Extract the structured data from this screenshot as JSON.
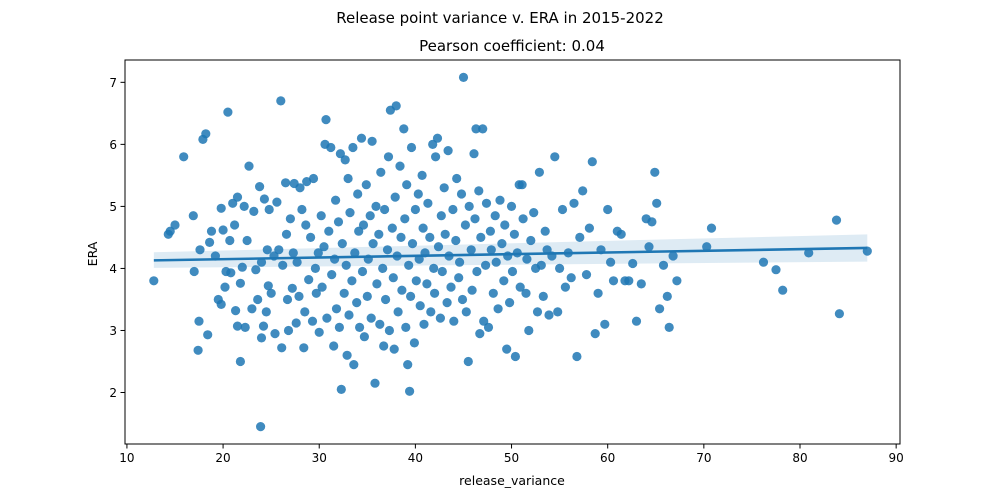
{
  "chart_data": {
    "type": "scatter",
    "title": "Release point variance v. ERA in 2015-2022",
    "subtitle": "Pearson coefficient: 0.04",
    "xlabel": "release_variance",
    "ylabel": "ERA",
    "xlim": [
      9.8,
      90.4
    ],
    "ylim": [
      1.17,
      7.36
    ],
    "xticks": [
      10,
      20,
      30,
      40,
      50,
      60,
      70,
      80,
      90
    ],
    "yticks": [
      2,
      3,
      4,
      5,
      6,
      7
    ],
    "grid": false,
    "legend": "none",
    "colors": {
      "points": "#1f77b4",
      "band": "#1f77b4"
    },
    "regression": {
      "x": [
        12.8,
        87.0
      ],
      "y": [
        4.13,
        4.33
      ],
      "ci_lower": [
        4.01,
        4.11
      ],
      "ci_upper": [
        4.26,
        4.55
      ]
    },
    "points": [
      [
        12.8,
        3.8
      ],
      [
        14.3,
        4.55
      ],
      [
        14.5,
        4.6
      ],
      [
        15.0,
        4.7
      ],
      [
        15.9,
        5.8
      ],
      [
        16.9,
        4.85
      ],
      [
        17.0,
        3.95
      ],
      [
        17.4,
        2.68
      ],
      [
        17.5,
        3.15
      ],
      [
        17.6,
        4.3
      ],
      [
        17.9,
        6.08
      ],
      [
        18.2,
        6.17
      ],
      [
        18.4,
        2.93
      ],
      [
        18.6,
        4.42
      ],
      [
        18.8,
        4.6
      ],
      [
        19.2,
        4.2
      ],
      [
        19.5,
        3.5
      ],
      [
        19.8,
        3.42
      ],
      [
        19.8,
        4.97
      ],
      [
        20.0,
        4.62
      ],
      [
        20.2,
        3.7
      ],
      [
        20.3,
        3.95
      ],
      [
        20.5,
        6.52
      ],
      [
        20.7,
        4.45
      ],
      [
        20.8,
        3.93
      ],
      [
        21.0,
        5.05
      ],
      [
        21.2,
        4.7
      ],
      [
        21.3,
        3.32
      ],
      [
        21.5,
        5.15
      ],
      [
        21.5,
        3.07
      ],
      [
        21.8,
        2.5
      ],
      [
        21.8,
        3.76
      ],
      [
        22.0,
        4.02
      ],
      [
        22.2,
        5.0
      ],
      [
        22.3,
        3.05
      ],
      [
        22.5,
        4.45
      ],
      [
        22.7,
        5.65
      ],
      [
        23.0,
        3.35
      ],
      [
        23.2,
        4.92
      ],
      [
        23.4,
        3.98
      ],
      [
        23.6,
        3.5
      ],
      [
        23.8,
        5.32
      ],
      [
        23.9,
        1.45
      ],
      [
        24.0,
        4.1
      ],
      [
        24.0,
        2.88
      ],
      [
        24.2,
        3.07
      ],
      [
        24.3,
        5.12
      ],
      [
        24.5,
        3.3
      ],
      [
        24.6,
        4.3
      ],
      [
        24.7,
        3.72
      ],
      [
        24.8,
        4.95
      ],
      [
        25.0,
        3.6
      ],
      [
        25.3,
        4.2
      ],
      [
        25.4,
        2.95
      ],
      [
        25.6,
        5.07
      ],
      [
        25.8,
        4.3
      ],
      [
        26.0,
        6.7
      ],
      [
        26.1,
        2.72
      ],
      [
        26.2,
        4.05
      ],
      [
        26.5,
        5.38
      ],
      [
        26.6,
        4.55
      ],
      [
        26.7,
        3.5
      ],
      [
        26.8,
        3.0
      ],
      [
        27.0,
        4.8
      ],
      [
        27.2,
        3.68
      ],
      [
        27.3,
        4.25
      ],
      [
        27.4,
        5.37
      ],
      [
        27.6,
        3.12
      ],
      [
        27.7,
        4.1
      ],
      [
        27.9,
        3.55
      ],
      [
        28.0,
        5.3
      ],
      [
        28.2,
        4.95
      ],
      [
        28.4,
        2.72
      ],
      [
        28.5,
        3.3
      ],
      [
        28.6,
        4.7
      ],
      [
        28.7,
        5.4
      ],
      [
        28.9,
        3.82
      ],
      [
        29.1,
        4.5
      ],
      [
        29.3,
        3.15
      ],
      [
        29.4,
        5.45
      ],
      [
        29.6,
        4.0
      ],
      [
        29.7,
        3.6
      ],
      [
        29.9,
        4.25
      ],
      [
        30.0,
        2.97
      ],
      [
        30.2,
        4.85
      ],
      [
        30.3,
        3.7
      ],
      [
        30.5,
        4.35
      ],
      [
        30.6,
        6.0
      ],
      [
        30.7,
        6.4
      ],
      [
        30.8,
        3.2
      ],
      [
        31.0,
        4.6
      ],
      [
        31.2,
        5.95
      ],
      [
        31.3,
        3.9
      ],
      [
        31.5,
        2.75
      ],
      [
        31.6,
        4.15
      ],
      [
        31.7,
        5.1
      ],
      [
        31.8,
        3.35
      ],
      [
        32.0,
        4.75
      ],
      [
        32.1,
        3.05
      ],
      [
        32.2,
        5.85
      ],
      [
        32.3,
        2.05
      ],
      [
        32.4,
        4.4
      ],
      [
        32.6,
        3.6
      ],
      [
        32.7,
        5.75
      ],
      [
        32.8,
        4.05
      ],
      [
        32.9,
        2.6
      ],
      [
        33.0,
        5.45
      ],
      [
        33.1,
        3.25
      ],
      [
        33.2,
        4.9
      ],
      [
        33.4,
        3.8
      ],
      [
        33.5,
        5.95
      ],
      [
        33.6,
        2.45
      ],
      [
        33.7,
        4.25
      ],
      [
        33.9,
        3.45
      ],
      [
        34.0,
        5.2
      ],
      [
        34.1,
        4.6
      ],
      [
        34.2,
        3.05
      ],
      [
        34.4,
        6.1
      ],
      [
        34.5,
        3.95
      ],
      [
        34.6,
        4.7
      ],
      [
        34.7,
        2.9
      ],
      [
        34.9,
        5.35
      ],
      [
        35.0,
        3.55
      ],
      [
        35.1,
        4.15
      ],
      [
        35.3,
        4.85
      ],
      [
        35.4,
        3.2
      ],
      [
        35.5,
        6.05
      ],
      [
        35.6,
        4.4
      ],
      [
        35.8,
        2.15
      ],
      [
        35.9,
        5.0
      ],
      [
        36.0,
        3.75
      ],
      [
        36.2,
        4.55
      ],
      [
        36.3,
        3.1
      ],
      [
        36.4,
        5.55
      ],
      [
        36.6,
        4.0
      ],
      [
        36.7,
        2.75
      ],
      [
        36.8,
        4.95
      ],
      [
        36.9,
        3.5
      ],
      [
        37.1,
        4.3
      ],
      [
        37.2,
        5.8
      ],
      [
        37.3,
        3.0
      ],
      [
        37.4,
        6.55
      ],
      [
        37.6,
        4.65
      ],
      [
        37.7,
        3.85
      ],
      [
        37.8,
        2.7
      ],
      [
        37.9,
        5.15
      ],
      [
        38.0,
        6.62
      ],
      [
        38.1,
        4.2
      ],
      [
        38.2,
        3.3
      ],
      [
        38.4,
        5.65
      ],
      [
        38.5,
        4.5
      ],
      [
        38.6,
        3.65
      ],
      [
        38.8,
        6.25
      ],
      [
        38.9,
        4.8
      ],
      [
        39.0,
        3.05
      ],
      [
        39.1,
        5.35
      ],
      [
        39.2,
        2.45
      ],
      [
        39.3,
        4.05
      ],
      [
        39.4,
        2.02
      ],
      [
        39.5,
        3.55
      ],
      [
        39.6,
        5.95
      ],
      [
        39.7,
        4.4
      ],
      [
        39.9,
        2.8
      ],
      [
        40.0,
        4.95
      ],
      [
        40.1,
        3.8
      ],
      [
        40.3,
        5.2
      ],
      [
        40.4,
        4.15
      ],
      [
        40.5,
        3.4
      ],
      [
        40.7,
        5.5
      ],
      [
        40.8,
        4.65
      ],
      [
        40.9,
        3.1
      ],
      [
        41.0,
        4.25
      ],
      [
        41.2,
        3.75
      ],
      [
        41.3,
        5.05
      ],
      [
        41.5,
        4.5
      ],
      [
        41.6,
        3.3
      ],
      [
        41.8,
        6.0
      ],
      [
        41.9,
        4.0
      ],
      [
        42.0,
        3.6
      ],
      [
        42.1,
        5.8
      ],
      [
        42.3,
        6.1
      ],
      [
        42.4,
        4.35
      ],
      [
        42.6,
        3.2
      ],
      [
        42.7,
        4.85
      ],
      [
        42.8,
        3.95
      ],
      [
        43.0,
        5.3
      ],
      [
        43.1,
        4.55
      ],
      [
        43.3,
        3.45
      ],
      [
        43.4,
        5.9
      ],
      [
        43.5,
        4.2
      ],
      [
        43.7,
        3.7
      ],
      [
        43.9,
        4.95
      ],
      [
        44.0,
        3.15
      ],
      [
        44.2,
        4.45
      ],
      [
        44.3,
        5.45
      ],
      [
        44.5,
        3.85
      ],
      [
        44.6,
        4.1
      ],
      [
        44.8,
        5.2
      ],
      [
        44.9,
        3.5
      ],
      [
        45.0,
        7.08
      ],
      [
        45.2,
        4.7
      ],
      [
        45.3,
        3.3
      ],
      [
        45.5,
        2.5
      ],
      [
        45.6,
        5.0
      ],
      [
        45.8,
        4.3
      ],
      [
        45.9,
        3.65
      ],
      [
        46.1,
        5.85
      ],
      [
        46.2,
        4.8
      ],
      [
        46.3,
        6.25
      ],
      [
        46.4,
        3.95
      ],
      [
        46.6,
        5.25
      ],
      [
        46.7,
        2.95
      ],
      [
        46.8,
        4.5
      ],
      [
        47.0,
        6.25
      ],
      [
        47.1,
        3.15
      ],
      [
        47.3,
        4.05
      ],
      [
        47.4,
        5.05
      ],
      [
        47.6,
        3.05
      ],
      [
        47.8,
        4.6
      ],
      [
        47.9,
        4.3
      ],
      [
        48.1,
        3.6
      ],
      [
        48.3,
        4.85
      ],
      [
        48.4,
        4.1
      ],
      [
        48.6,
        3.35
      ],
      [
        48.8,
        5.1
      ],
      [
        49.0,
        4.4
      ],
      [
        49.2,
        3.8
      ],
      [
        49.3,
        4.7
      ],
      [
        49.5,
        2.7
      ],
      [
        49.6,
        4.2
      ],
      [
        49.8,
        3.45
      ],
      [
        50.0,
        5.0
      ],
      [
        50.1,
        3.95
      ],
      [
        50.3,
        4.55
      ],
      [
        50.4,
        2.58
      ],
      [
        50.6,
        4.25
      ],
      [
        50.8,
        5.35
      ],
      [
        50.9,
        3.7
      ],
      [
        51.1,
        5.35
      ],
      [
        51.2,
        4.8
      ],
      [
        51.5,
        3.6
      ],
      [
        51.6,
        4.15
      ],
      [
        51.8,
        3.0
      ],
      [
        52.0,
        4.45
      ],
      [
        52.3,
        4.9
      ],
      [
        52.5,
        4.0
      ],
      [
        52.7,
        3.3
      ],
      [
        52.9,
        5.55
      ],
      [
        53.1,
        4.05
      ],
      [
        53.3,
        3.55
      ],
      [
        53.5,
        4.6
      ],
      [
        53.7,
        4.3
      ],
      [
        53.9,
        3.25
      ],
      [
        54.2,
        4.2
      ],
      [
        54.5,
        5.8
      ],
      [
        54.8,
        3.3
      ],
      [
        55.0,
        4.0
      ],
      [
        55.3,
        4.95
      ],
      [
        55.6,
        3.7
      ],
      [
        55.9,
        4.25
      ],
      [
        56.2,
        3.85
      ],
      [
        56.5,
        5.05
      ],
      [
        56.8,
        2.58
      ],
      [
        57.1,
        4.5
      ],
      [
        57.4,
        5.25
      ],
      [
        57.8,
        3.9
      ],
      [
        58.1,
        4.65
      ],
      [
        58.4,
        5.72
      ],
      [
        58.7,
        2.95
      ],
      [
        59.0,
        3.6
      ],
      [
        59.3,
        4.3
      ],
      [
        59.7,
        3.1
      ],
      [
        60.0,
        4.95
      ],
      [
        60.3,
        4.1
      ],
      [
        60.6,
        3.8
      ],
      [
        61.0,
        4.6
      ],
      [
        61.4,
        4.55
      ],
      [
        61.8,
        3.8
      ],
      [
        62.2,
        3.8
      ],
      [
        62.6,
        4.08
      ],
      [
        63.0,
        3.15
      ],
      [
        63.5,
        3.75
      ],
      [
        64.0,
        4.8
      ],
      [
        64.3,
        4.35
      ],
      [
        64.6,
        4.75
      ],
      [
        64.9,
        5.55
      ],
      [
        65.1,
        5.05
      ],
      [
        65.4,
        3.35
      ],
      [
        65.8,
        4.05
      ],
      [
        66.2,
        3.55
      ],
      [
        66.4,
        3.05
      ],
      [
        66.8,
        4.2
      ],
      [
        67.2,
        3.8
      ],
      [
        70.3,
        4.35
      ],
      [
        70.8,
        4.65
      ],
      [
        76.2,
        4.1
      ],
      [
        77.5,
        3.98
      ],
      [
        78.2,
        3.65
      ],
      [
        80.9,
        4.25
      ],
      [
        83.8,
        4.78
      ],
      [
        84.1,
        3.27
      ],
      [
        87.0,
        4.28
      ]
    ]
  }
}
